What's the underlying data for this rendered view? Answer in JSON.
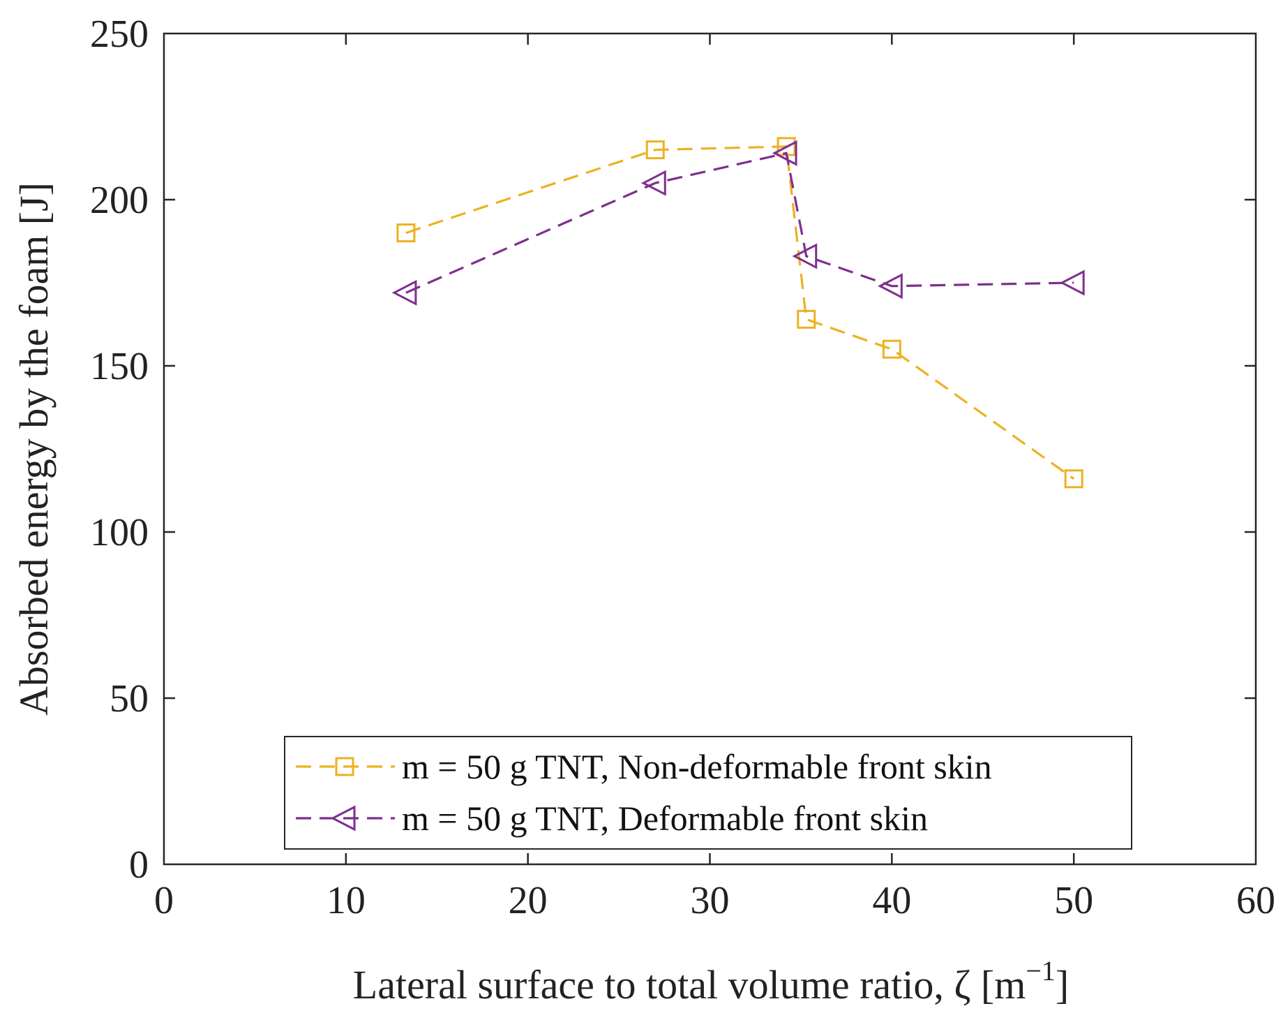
{
  "chart_data": {
    "type": "line",
    "title": "",
    "xlabel": "Lateral surface to total volume ratio, ζ [m",
    "xlabel_superscript": "−1",
    "xlabel_suffix": "]",
    "ylabel": "Absorbed energy by the foam [J]",
    "xlim": [
      0,
      60
    ],
    "ylim": [
      0,
      250
    ],
    "xticks": [
      0,
      10,
      20,
      30,
      40,
      50,
      60
    ],
    "yticks": [
      0,
      50,
      100,
      150,
      200,
      250
    ],
    "xtick_labels": [
      "0",
      "10",
      "20",
      "30",
      "40",
      "50",
      "60"
    ],
    "ytick_labels": [
      "0",
      "50",
      "100",
      "150",
      "200",
      "250"
    ],
    "grid": false,
    "legend_position": "bottom-center",
    "series": [
      {
        "name": "m = 50 g TNT, Non-deformable front skin",
        "color": "#EDB120",
        "marker": "square",
        "line_style": "dashed",
        "x": [
          13.3,
          27.0,
          34.2,
          35.3,
          40.0,
          50.0
        ],
        "y": [
          190,
          215,
          216,
          164,
          155,
          116
        ]
      },
      {
        "name": "m = 50 g TNT, Deformable front skin",
        "color": "#7E2F8E",
        "marker": "triangle-left",
        "line_style": "dashed",
        "x": [
          13.3,
          27.0,
          34.2,
          35.3,
          40.0,
          50.0
        ],
        "y": [
          172,
          205,
          214,
          183,
          174,
          175
        ]
      }
    ]
  }
}
